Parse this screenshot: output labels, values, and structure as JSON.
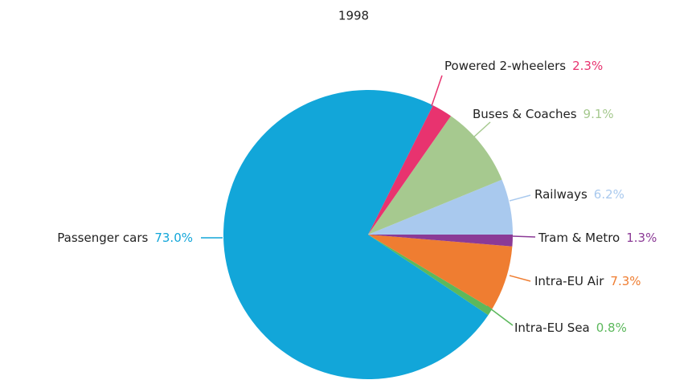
{
  "chart_data": {
    "type": "pie",
    "title": "1998",
    "categories": [
      "Railways",
      "Buses & Coaches",
      "Powered 2-wheelers",
      "Passenger cars",
      "Intra-EU Sea",
      "Intra-EU Air",
      "Tram & Metro"
    ],
    "values": [
      6.2,
      9.1,
      2.3,
      73.0,
      0.8,
      7.3,
      1.3
    ],
    "value_labels": [
      "6.2%",
      "9.1%",
      "2.3%",
      "73.0%",
      "0.8%",
      "7.3%",
      "1.3%"
    ],
    "colors": [
      "#a9c9ee",
      "#a6c98f",
      "#e8336f",
      "#12a6d9",
      "#5cb85c",
      "#ef7d31",
      "#8b3a96"
    ]
  }
}
